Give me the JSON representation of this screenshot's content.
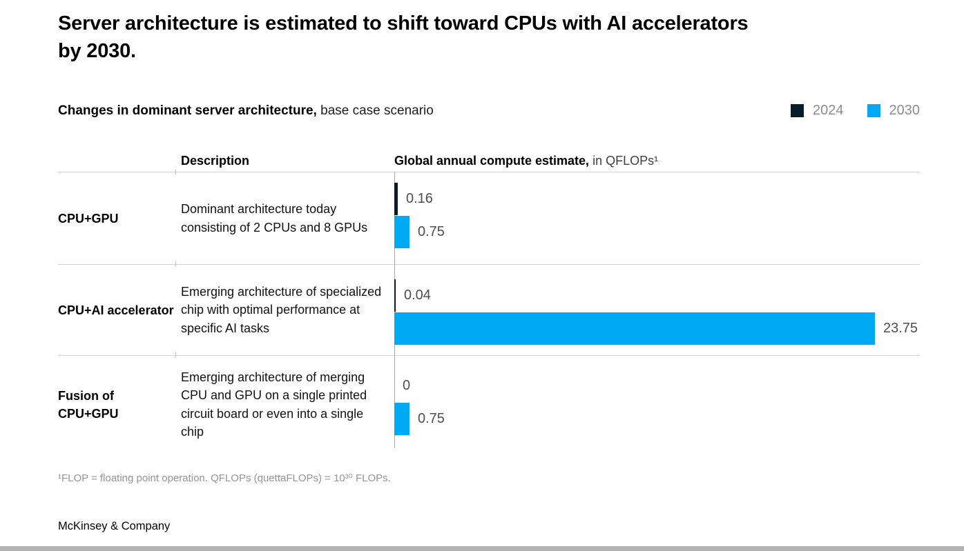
{
  "title": {
    "line1": "Server architecture is estimated to shift toward CPUs with AI accelerators",
    "line2": "by 2030."
  },
  "subtitle": {
    "bold": "Changes in dominant server architecture,",
    "regular": " base case scenario"
  },
  "legend": [
    {
      "label": "2024",
      "color": "#051C2C"
    },
    {
      "label": "2030",
      "color": "#00A9F4"
    }
  ],
  "table": {
    "header_description": "Description",
    "header_compute_bold": "Global annual compute estimate,",
    "header_compute_regular": " in QFLOPs¹"
  },
  "chart_data": {
    "type": "bar",
    "orientation": "horizontal",
    "title": "Changes in dominant server architecture, base case scenario",
    "value_axis_label": "Global annual compute estimate, in QFLOPs",
    "xlim": [
      0,
      23.75
    ],
    "grid": false,
    "legend_position": "top-right",
    "categories": [
      "CPU+GPU",
      "CPU+AI accelerator",
      "Fusion of CPU+GPU"
    ],
    "descriptions": [
      "Dominant architecture today consisting of 2 CPUs and 8 GPUs",
      "Emerging architecture of specialized chip with optimal performance at specific AI tasks",
      "Emerging architecture of merging CPU and GPU on a single printed circuit board or even into a single chip"
    ],
    "series": [
      {
        "name": "2024",
        "color": "#051C2C",
        "values": [
          0.16,
          0.04,
          0
        ],
        "labels": [
          "0.16",
          "0.04",
          "0"
        ]
      },
      {
        "name": "2030",
        "color": "#00A9F4",
        "values": [
          0.75,
          23.75,
          0.75
        ],
        "labels": [
          "0.75",
          "23.75",
          "0.75"
        ]
      }
    ]
  },
  "footnote": "¹FLOP = floating point operation. QFLOPs (quettaFLOPs) = 10³⁰ FLOPs.",
  "brand": "McKinsey & Company",
  "colors": {
    "dark_2024": "#051C2C",
    "blue_2030": "#00A9F4",
    "value_text": "#4d4d4d",
    "separator": "#d2d2d2",
    "bottom_bar": "#b3b3b3"
  }
}
